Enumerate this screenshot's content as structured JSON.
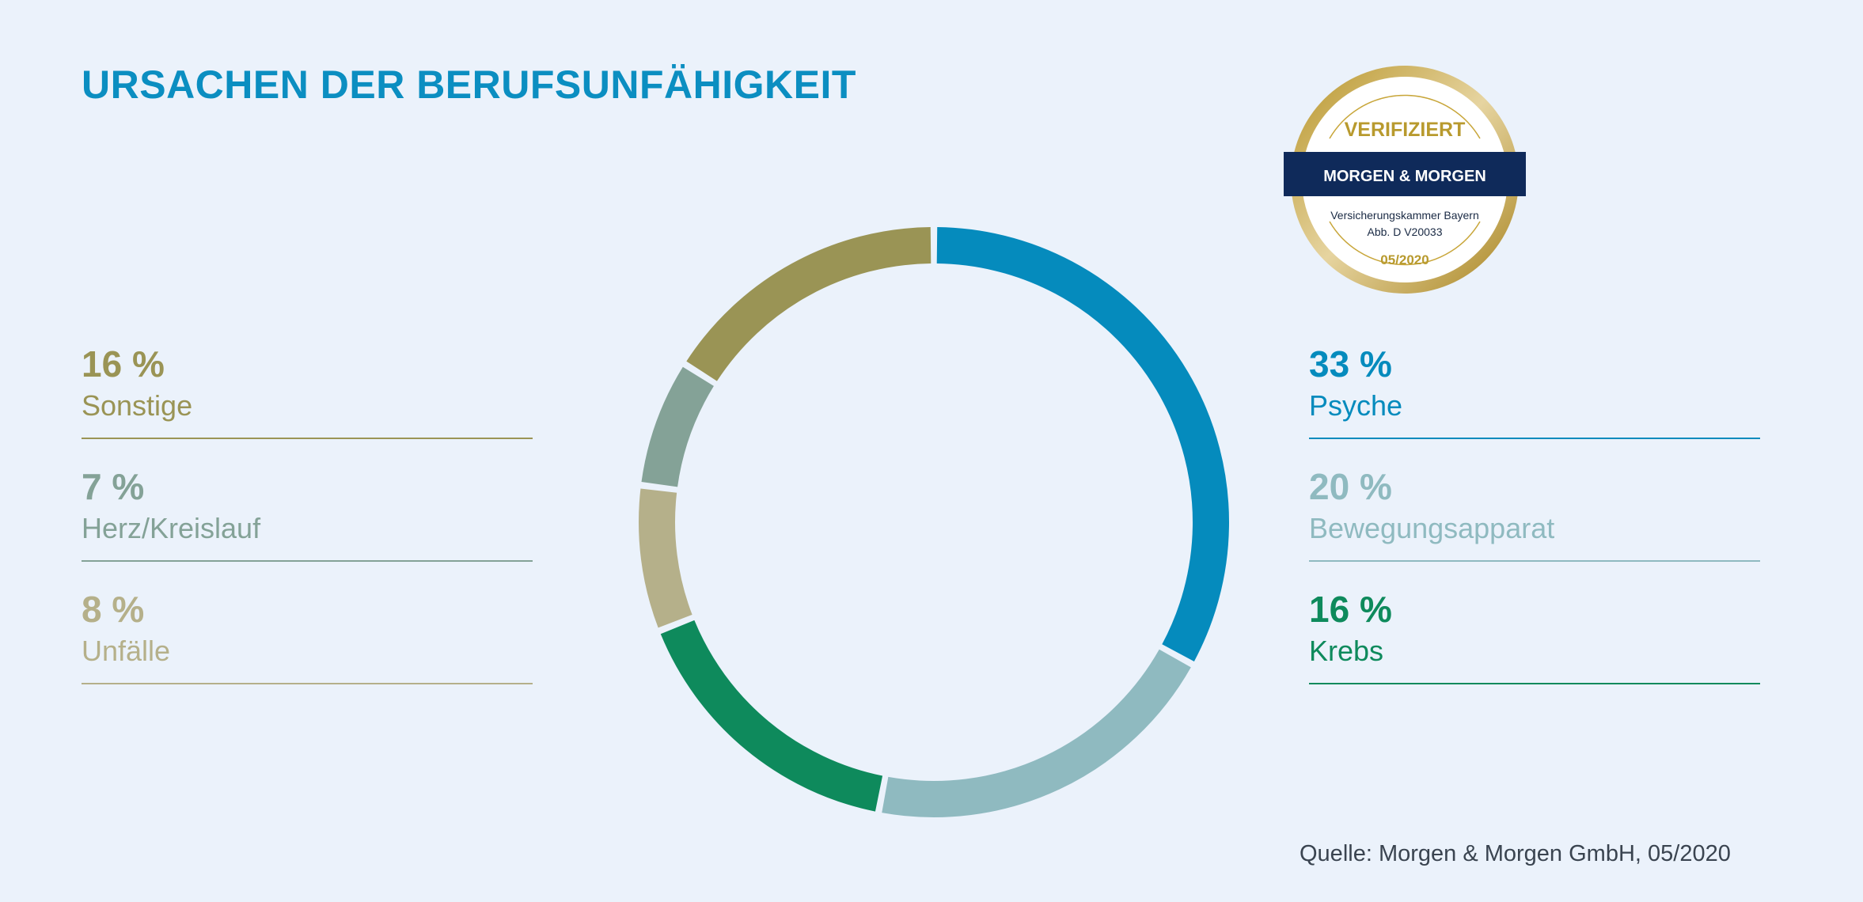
{
  "title": "URSACHEN DER BERUFSUNFÄHIGKEIT",
  "colors": {
    "title": "#0b8ec1",
    "source": "#3a4450",
    "badge_gold": "#c8a63a",
    "badge_navy": "#0f2a5a"
  },
  "badge": {
    "top_text": "VERIFIZIERT",
    "brand": "MORGEN & MORGEN",
    "line1": "Versicherungskammer Bayern",
    "line2": "Abb. D V20033",
    "date": "05/2020"
  },
  "legend_left": [
    {
      "pct": "16 %",
      "label": "Sonstige",
      "color": "#9a9455"
    },
    {
      "pct": "7 %",
      "label": "Herz/Kreislauf",
      "color": "#84a297"
    },
    {
      "pct": "8 %",
      "label": "Unfälle",
      "color": "#b5b08a"
    }
  ],
  "legend_right": [
    {
      "pct": "33 %",
      "label": "Psyche",
      "color": "#058bbd"
    },
    {
      "pct": "20 %",
      "label": "Bewegungsapparat",
      "color": "#8fbac0"
    },
    {
      "pct": "16 %",
      "label": "Krebs",
      "color": "#0e8a5c"
    }
  ],
  "chart_data": {
    "type": "pie",
    "style": "donut",
    "title": "URSACHEN DER BERUFSUNFÄHIGKEIT",
    "unit": "%",
    "slices": [
      {
        "label": "Psyche",
        "value": 33,
        "color": "#058bbd"
      },
      {
        "label": "Bewegungsapparat",
        "value": 20,
        "color": "#8fbac0"
      },
      {
        "label": "Krebs",
        "value": 16,
        "color": "#0e8a5c"
      },
      {
        "label": "Unfälle",
        "value": 8,
        "color": "#b5b08a"
      },
      {
        "label": "Herz/Kreislauf",
        "value": 7,
        "color": "#84a297"
      },
      {
        "label": "Sonstige",
        "value": 16,
        "color": "#9a9455"
      }
    ],
    "source": "Quelle: Morgen & Morgen GmbH, 05/2020"
  }
}
